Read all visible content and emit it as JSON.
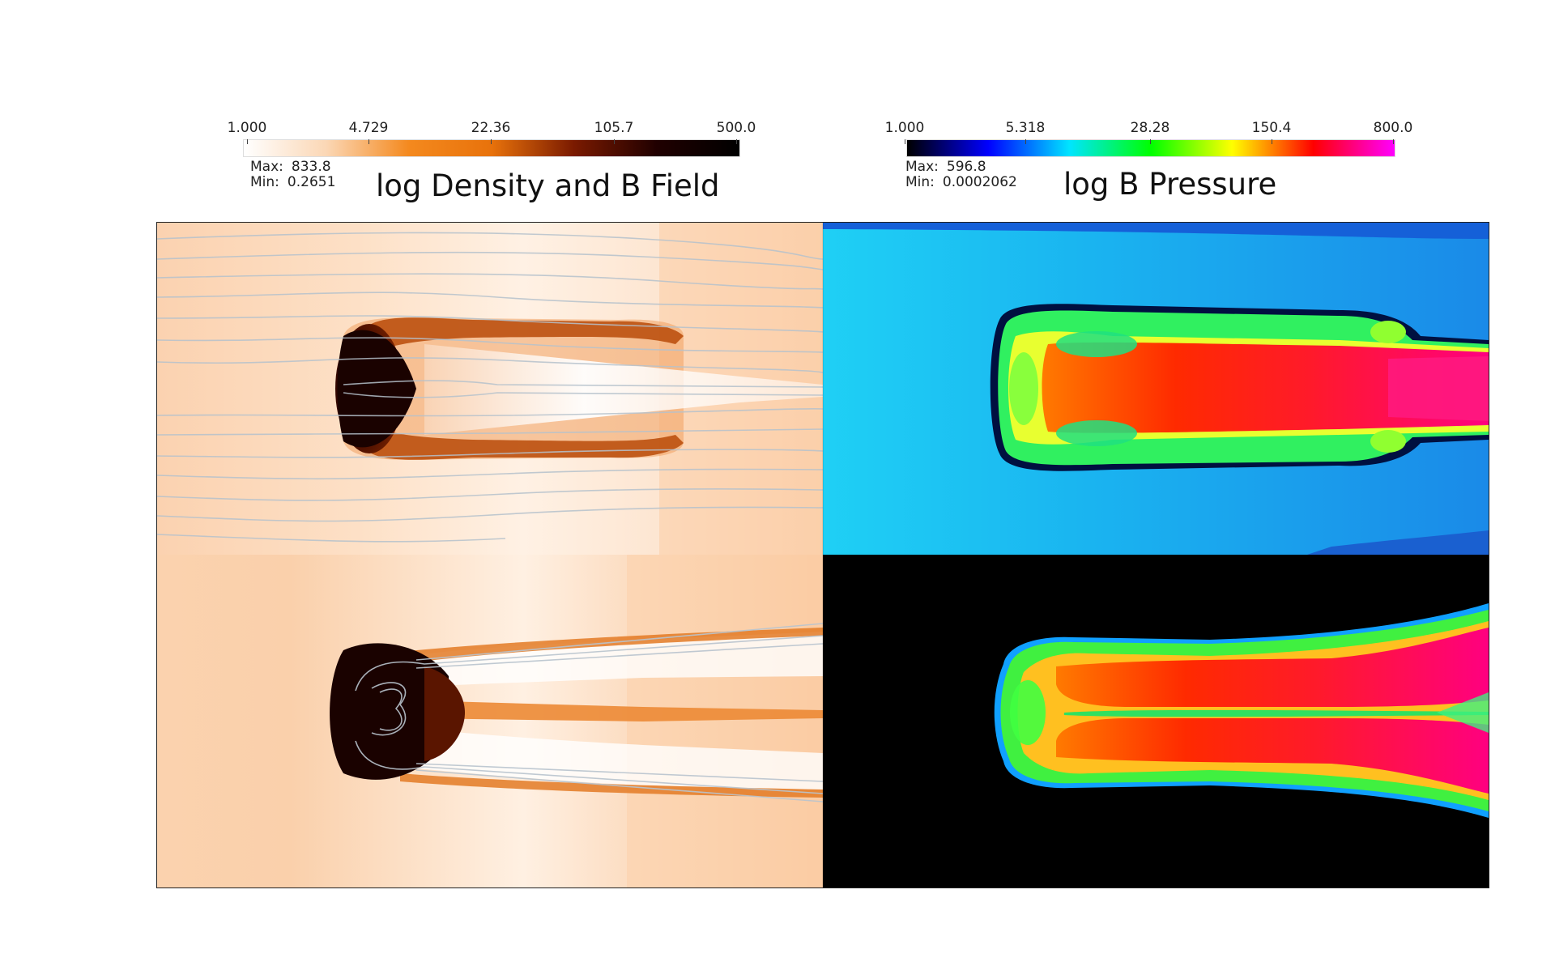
{
  "panels": [
    {
      "title": "log Density and B Field",
      "max_label": "Max:",
      "max_value": "833.8",
      "min_label": "Min:",
      "min_value": "0.2651",
      "colorbar": {
        "ticks": [
          "1.000",
          "4.729",
          "22.36",
          "105.7",
          "500.0"
        ],
        "colors": [
          "#ffffff",
          "#fbd7b5",
          "#f4891e",
          "#e8720b",
          "#7a1a00",
          "#200000",
          "#000000"
        ]
      }
    },
    {
      "title": "log B Pressure",
      "max_label": "Max:",
      "max_value": "596.8",
      "min_label": "Min:",
      "min_value": "0.0002062",
      "colorbar": {
        "ticks": [
          "1.000",
          "5.318",
          "28.28",
          "150.4",
          "800.0"
        ],
        "colors": [
          "#000000",
          "#0000ff",
          "#00e5ff",
          "#00ff00",
          "#ffff00",
          "#ff0000",
          "#ff00ff"
        ]
      }
    }
  ]
}
